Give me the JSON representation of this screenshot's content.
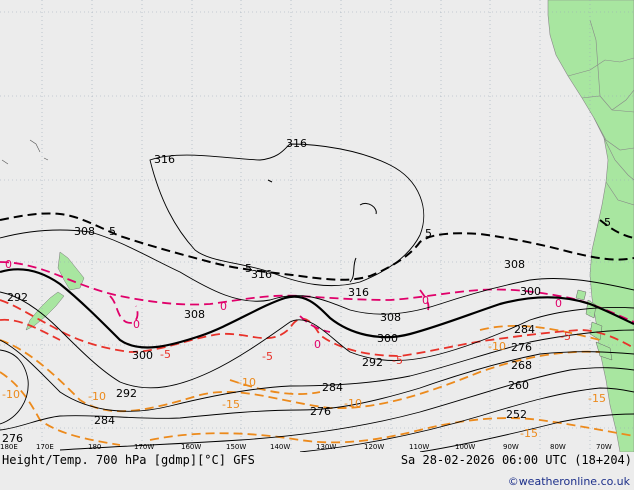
{
  "map": {
    "title": "Height/Temp. 700 hPa [gdmp][°C] GFS",
    "datetime": "Sa 28-02-2026 06:00 UTC (18+204)",
    "credit": "©weatheronline.co.uk",
    "colors": {
      "ocean": "#ececec",
      "land": "#a8e6a0",
      "border": "#888888",
      "grid": "#9aa8b8",
      "height_contour": "#000000",
      "temp_0": "#e0006a",
      "temp_neg5": "#e8322a",
      "temp_neg10": "#ec8a1c",
      "temp_pos5": "#000000"
    },
    "longitude_ticks": [
      "180E",
      "170E",
      "180",
      "170W",
      "160W",
      "150W",
      "140W",
      "130W",
      "120W",
      "110W",
      "100W",
      "90W",
      "80W",
      "70W"
    ],
    "height_labels": [
      "316",
      "316",
      "316",
      "316",
      "308",
      "308",
      "308",
      "308",
      "300",
      "300",
      "300",
      "292",
      "292",
      "292",
      "284",
      "284",
      "284",
      "276",
      "276",
      "276",
      "268",
      "260",
      "252"
    ],
    "temp_labels": {
      "pos5": [
        "5",
        "5",
        "5",
        "5"
      ],
      "zero": [
        "0",
        "0",
        "0",
        "0",
        "0",
        "0"
      ],
      "neg5": [
        "-5",
        "-5",
        "-5",
        "-5"
      ],
      "neg10": [
        "-10",
        "-10",
        "-10",
        "-10",
        "-10"
      ],
      "neg15": [
        "-15",
        "-15",
        "-15"
      ]
    }
  }
}
